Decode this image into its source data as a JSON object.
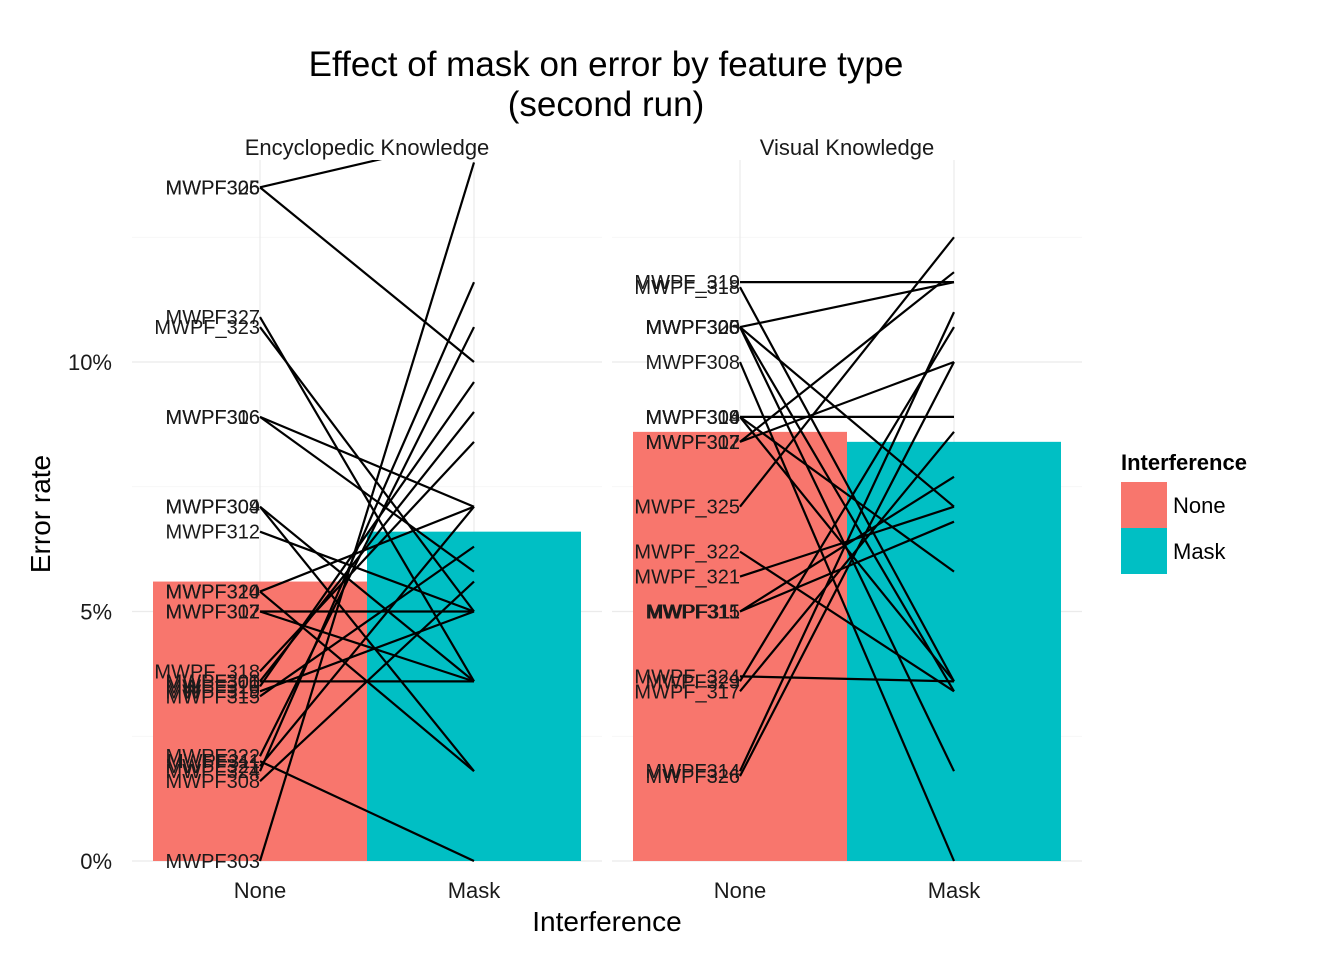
{
  "chart_data": {
    "type": "bar",
    "title": "Effect of mask on error by feature type",
    "subtitle": "(second run)",
    "xlabel": "Interference",
    "ylabel": "Error rate",
    "categories": [
      "None",
      "Mask"
    ],
    "y_ticks": [
      "0%",
      "5%",
      "10%"
    ],
    "y_tick_values": [
      0,
      5,
      10
    ],
    "ylim": [
      0,
      14
    ],
    "grid": true,
    "legend": {
      "title": "Interference",
      "position": "right",
      "entries": [
        {
          "label": "None",
          "color": "#F8766D"
        },
        {
          "label": "Mask",
          "color": "#00BFC4"
        }
      ]
    },
    "panels": [
      {
        "name": "Encyclopedic Knowledge",
        "bars": [
          5.6,
          6.6
        ],
        "pairs": [
          {
            "label": "MWPF326",
            "none": 13.5,
            "mask": 14.5
          },
          {
            "label": "MWPF305",
            "none": 13.5,
            "mask": 10.0
          },
          {
            "label": "MWPF327",
            "none": 10.9,
            "mask": 3.6
          },
          {
            "label": "MWPF_323",
            "none": 10.7,
            "mask": 5.0
          },
          {
            "label": "MWPF316",
            "none": 8.9,
            "mask": 7.1
          },
          {
            "label": "MWPF306",
            "none": 8.9,
            "mask": 5.8
          },
          {
            "label": "MWPF304",
            "none": 7.1,
            "mask": 1.8
          },
          {
            "label": "MWPF309",
            "none": 7.1,
            "mask": 3.6
          },
          {
            "label": "MWPF312",
            "none": 6.6,
            "mask": 5.0
          },
          {
            "label": "MWPF320",
            "none": 5.4,
            "mask": 7.1
          },
          {
            "label": "MWPF314",
            "none": 5.4,
            "mask": 1.8
          },
          {
            "label": "MWPF317",
            "none": 5.0,
            "mask": 5.0
          },
          {
            "label": "MWPF302",
            "none": 5.0,
            "mask": 3.6
          },
          {
            "label": "MWPF_318",
            "none": 3.8,
            "mask": 8.4
          },
          {
            "label": "MWPF300",
            "none": 3.6,
            "mask": 9.0
          },
          {
            "label": "MWPF301",
            "none": 3.6,
            "mask": 3.6
          },
          {
            "label": "MWPF310",
            "none": 3.5,
            "mask": 9.6
          },
          {
            "label": "MWPF319",
            "none": 3.4,
            "mask": 5.0
          },
          {
            "label": "MWPF315",
            "none": 3.3,
            "mask": 6.3
          },
          {
            "label": "MWPF322",
            "none": 2.1,
            "mask": 10.7
          },
          {
            "label": "MWPF311",
            "none": 2.0,
            "mask": 0.0
          },
          {
            "label": "MWPF321",
            "none": 1.9,
            "mask": 7.1
          },
          {
            "label": "MWPF324",
            "none": 1.8,
            "mask": 11.6
          },
          {
            "label": "MWPF308",
            "none": 1.6,
            "mask": 5.6
          },
          {
            "label": "MWPF303",
            "none": 0.0,
            "mask": 14.0
          }
        ]
      },
      {
        "name": "Visual Knowledge",
        "bars": [
          8.6,
          8.4
        ],
        "pairs": [
          {
            "label": "MWPF_319",
            "none": 11.6,
            "mask": 11.6
          },
          {
            "label": "MWPF_318",
            "none": 11.5,
            "mask": 3.6
          },
          {
            "label": "MWPF305",
            "none": 10.7,
            "mask": 3.4
          },
          {
            "label": "MWPF300",
            "none": 10.7,
            "mask": 7.1
          },
          {
            "label": "MWPF326",
            "none": 10.7,
            "mask": 11.6
          },
          {
            "label": "MWPF303",
            "none": 10.7,
            "mask": 1.8
          },
          {
            "label": "MWPF308",
            "none": 10.0,
            "mask": 0.0
          },
          {
            "label": "MWPF316",
            "none": 8.9,
            "mask": 8.9
          },
          {
            "label": "MWPF309",
            "none": 8.9,
            "mask": 3.6
          },
          {
            "label": "MWPF304",
            "none": 8.9,
            "mask": 5.8
          },
          {
            "label": "MWPF317",
            "none": 8.4,
            "mask": 10.0
          },
          {
            "label": "MWPF302",
            "none": 8.4,
            "mask": 11.8
          },
          {
            "label": "MWPF_325",
            "none": 7.1,
            "mask": 12.5
          },
          {
            "label": "MWPF_322",
            "none": 6.2,
            "mask": 3.4
          },
          {
            "label": "MWPF_321",
            "none": 5.7,
            "mask": 7.1
          },
          {
            "label": "MWPF315",
            "none": 5.0,
            "mask": 6.8
          },
          {
            "label": "MWPF311",
            "none": 5.0,
            "mask": 7.7
          },
          {
            "label": "MWPF_324",
            "none": 3.7,
            "mask": 3.6
          },
          {
            "label": "MWPF329",
            "none": 3.6,
            "mask": 10.7
          },
          {
            "label": "MWPF_317",
            "none": 3.4,
            "mask": 8.6
          },
          {
            "label": "MWPF314",
            "none": 1.8,
            "mask": 11.0
          },
          {
            "label": "MWPF326",
            "none": 1.7,
            "mask": 10.0
          }
        ]
      }
    ]
  }
}
